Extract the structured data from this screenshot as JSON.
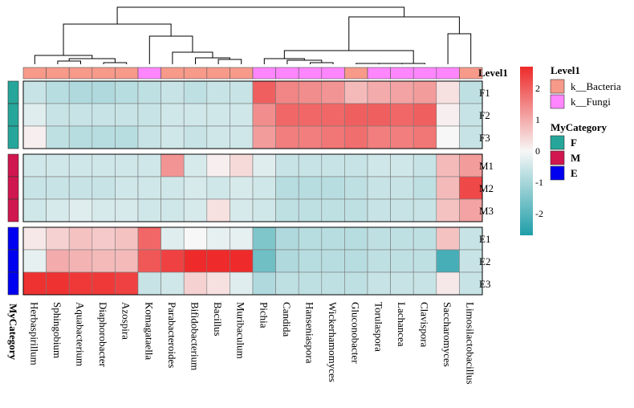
{
  "chart_data": {
    "type": "heatmap",
    "columns": [
      "Herbaspirillum",
      "Sphingobium",
      "Aquabacterium",
      "Diaphorobacter",
      "Azospira",
      "Komagataella",
      "Parabacteroides",
      "Bifidobacterium",
      "Bacillus",
      "Muribaculum",
      "Pichia",
      "Candida",
      "Hanseniaspora",
      "Wickerhamomyces",
      "Gluconobacter",
      "Torulaspora",
      "Lachancea",
      "Clavispora",
      "Saccharomyces",
      "Limosilactobacillus"
    ],
    "rows": [
      "F1",
      "F2",
      "F3",
      "M1",
      "M2",
      "M3",
      "E1",
      "E2",
      "E3"
    ],
    "row_groups": [
      {
        "label": "F",
        "rows": [
          "F1",
          "F2",
          "F3"
        ]
      },
      {
        "label": "M",
        "rows": [
          "M1",
          "M2",
          "M3"
        ]
      },
      {
        "label": "E",
        "rows": [
          "E1",
          "E2",
          "E3"
        ]
      }
    ],
    "values": [
      [
        -0.6,
        -0.8,
        -0.9,
        -0.9,
        -0.8,
        -0.7,
        -0.6,
        -0.7,
        -0.6,
        -0.6,
        2.0,
        1.5,
        1.4,
        1.3,
        0.8,
        1.0,
        1.1,
        1.2,
        0.3,
        -0.7
      ],
      [
        -0.3,
        -0.6,
        -0.6,
        -0.6,
        -0.6,
        -0.6,
        -0.5,
        -0.5,
        -0.5,
        -0.5,
        1.4,
        1.9,
        1.9,
        1.9,
        2.0,
        2.0,
        1.9,
        2.0,
        0.1,
        -0.6
      ],
      [
        0.1,
        -0.7,
        -0.8,
        -0.8,
        -0.8,
        -0.6,
        -0.5,
        -0.6,
        -0.5,
        -0.5,
        1.2,
        1.6,
        1.6,
        1.7,
        1.8,
        1.6,
        1.6,
        1.7,
        0.0,
        -0.6
      ],
      [
        -0.5,
        -0.5,
        -0.5,
        -0.5,
        -0.5,
        -0.5,
        1.3,
        -0.4,
        0.1,
        0.4,
        -0.3,
        -0.6,
        -0.6,
        -0.6,
        -0.6,
        -0.5,
        -0.5,
        -0.6,
        0.8,
        1.2
      ],
      [
        -0.6,
        -0.6,
        -0.6,
        -0.6,
        -0.5,
        -0.5,
        -0.5,
        -0.4,
        -0.5,
        -0.4,
        -0.5,
        -0.8,
        -0.8,
        -0.8,
        -0.7,
        -0.6,
        -0.6,
        -0.7,
        0.8,
        2.3
      ],
      [
        -0.5,
        -0.4,
        -0.3,
        -0.4,
        -0.4,
        -0.5,
        -0.5,
        -0.4,
        0.3,
        -0.4,
        -0.5,
        -0.7,
        -0.7,
        -0.7,
        -0.7,
        -0.6,
        -0.6,
        -0.6,
        0.7,
        1.1
      ],
      [
        0.2,
        0.5,
        0.7,
        0.6,
        0.7,
        1.9,
        -0.3,
        0.0,
        -0.2,
        -0.2,
        -1.5,
        -0.9,
        -0.8,
        -0.8,
        -0.8,
        -0.7,
        -0.7,
        -0.7,
        0.7,
        -0.6
      ],
      [
        -0.2,
        1.0,
        0.9,
        0.8,
        0.8,
        2.1,
        2.4,
        2.7,
        2.7,
        2.7,
        -1.7,
        -0.9,
        -0.8,
        -0.8,
        -0.8,
        -0.7,
        -0.7,
        -0.7,
        -2.2,
        -0.6
      ],
      [
        2.6,
        2.6,
        2.5,
        2.5,
        2.4,
        -0.6,
        -0.5,
        0.5,
        0.3,
        -0.3,
        -0.9,
        -0.7,
        -0.7,
        -0.7,
        -0.7,
        -0.6,
        -0.6,
        -0.6,
        0.2,
        -0.6
      ]
    ],
    "level1": [
      "Bacteria",
      "Bacteria",
      "Bacteria",
      "Bacteria",
      "Bacteria",
      "Fungi",
      "Bacteria",
      "Bacteria",
      "Bacteria",
      "Bacteria",
      "Fungi",
      "Fungi",
      "Fungi",
      "Fungi",
      "Bacteria",
      "Fungi",
      "Fungi",
      "Fungi",
      "Fungi",
      "Bacteria"
    ],
    "color_scale": {
      "min": -2.7,
      "max": 2.7,
      "ticks": [
        2,
        1,
        0,
        -1,
        -2
      ],
      "low_color": "#1f9ea8",
      "mid_color": "#f7f7f7",
      "high_color": "#ee2a2a"
    },
    "row_group_colors": {
      "F": "#26a69a",
      "M": "#d0174f",
      "E": "#0000f0"
    },
    "level1_colors": {
      "Bacteria": "#f79a8a",
      "Fungi": "#ff86ff"
    },
    "annotation_title": "Level1",
    "side_annotation_title": "MyCategory",
    "legend": {
      "level1_title": "Level1",
      "level1_items": [
        {
          "key": "Bacteria",
          "label": "k__Bacteria"
        },
        {
          "key": "Fungi",
          "label": "k__Fungi"
        }
      ],
      "category_title": "MyCategory",
      "category_items": [
        "F",
        "M",
        "E"
      ]
    }
  }
}
